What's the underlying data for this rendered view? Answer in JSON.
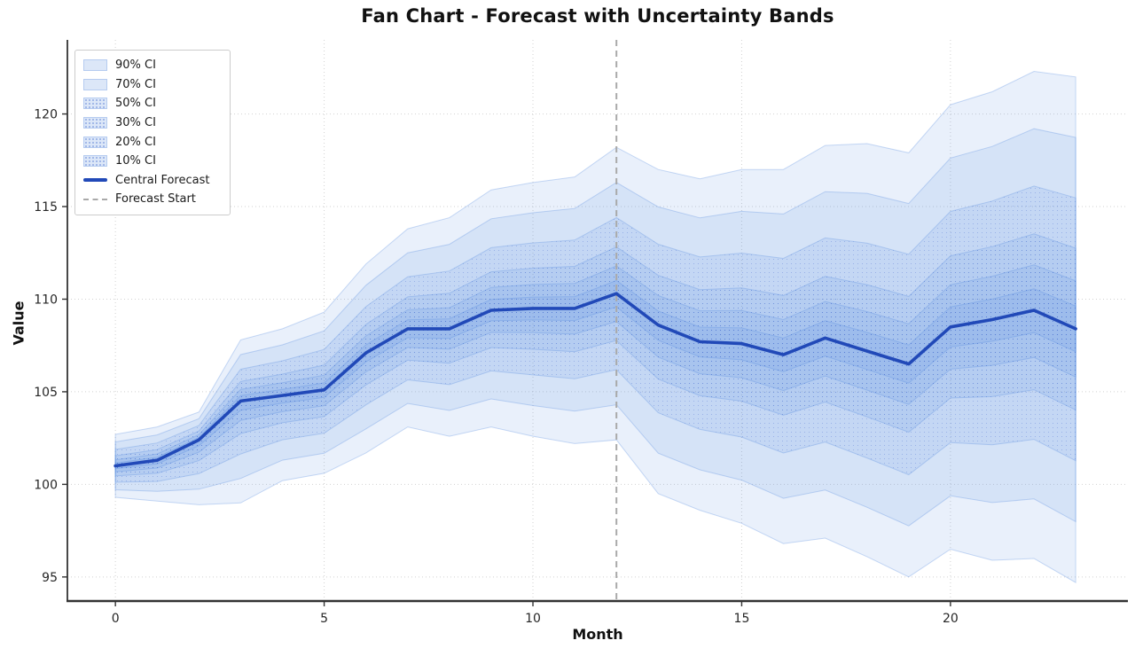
{
  "chart_data": {
    "type": "area",
    "variant": "fan-chart",
    "title": "Fan Chart - Forecast with Uncertainty Bands",
    "xlabel": "Month",
    "ylabel": "Value",
    "x": [
      0,
      1,
      2,
      3,
      4,
      5,
      6,
      7,
      8,
      9,
      10,
      11,
      12,
      13,
      14,
      15,
      16,
      17,
      18,
      19,
      20,
      21,
      22,
      23
    ],
    "central_forecast": [
      101.0,
      101.3,
      102.4,
      104.5,
      104.8,
      105.1,
      107.1,
      108.4,
      108.4,
      109.4,
      109.5,
      109.5,
      110.3,
      108.6,
      107.7,
      107.6,
      107.0,
      107.9,
      107.2,
      106.5,
      108.5,
      108.9,
      109.4,
      108.4
    ],
    "upper_90ci": [
      102.7,
      103.1,
      103.9,
      107.8,
      108.4,
      109.3,
      111.9,
      113.8,
      114.4,
      115.9,
      116.3,
      116.6,
      118.2,
      117.0,
      116.5,
      117.0,
      117.0,
      118.3,
      118.4,
      117.9,
      120.5,
      121.2,
      122.3,
      122.0
    ],
    "lower_90ci": [
      99.3,
      99.1,
      98.9,
      99.0,
      100.2,
      100.6,
      101.7,
      103.1,
      102.6,
      103.1,
      102.6,
      102.2,
      102.4,
      99.5,
      98.6,
      97.9,
      96.8,
      97.1,
      96.1,
      95.0,
      96.5,
      95.9,
      96.0,
      94.7
    ],
    "ci_bands": [
      {
        "label": "90% CI",
        "fraction_of_90": 1.0,
        "hatched": false
      },
      {
        "label": "70% CI",
        "fraction_of_90": 0.76,
        "hatched": false
      },
      {
        "label": "50% CI",
        "fraction_of_90": 0.52,
        "hatched": true
      },
      {
        "label": "30% CI",
        "fraction_of_90": 0.32,
        "hatched": true
      },
      {
        "label": "20% CI",
        "fraction_of_90": 0.19,
        "hatched": true
      },
      {
        "label": "10% CI",
        "fraction_of_90": 0.09,
        "hatched": true
      }
    ],
    "central_label": "Central Forecast",
    "forecast_start_label": "Forecast Start",
    "forecast_start_x": 12,
    "xticks": [
      0,
      5,
      10,
      15,
      20
    ],
    "yticks": [
      95,
      100,
      105,
      110,
      115,
      120
    ],
    "xlim": [
      -1.15,
      24.25
    ],
    "ylim": [
      93.7,
      124.0
    ],
    "grid": true,
    "legend_position": "upper-left",
    "colors": {
      "band_fill": "#568ce0",
      "band_fill_alpha": 0.13,
      "band_edge": "rgba(86,140,224,0.32)",
      "hatch_dot": "#4a6fd0",
      "central_line": "#2149b8",
      "forecast_start_line": "#a9a9a9",
      "gridline": "#cdcdcd",
      "axis_spine": "#333333",
      "tick_label": "#262626"
    }
  }
}
